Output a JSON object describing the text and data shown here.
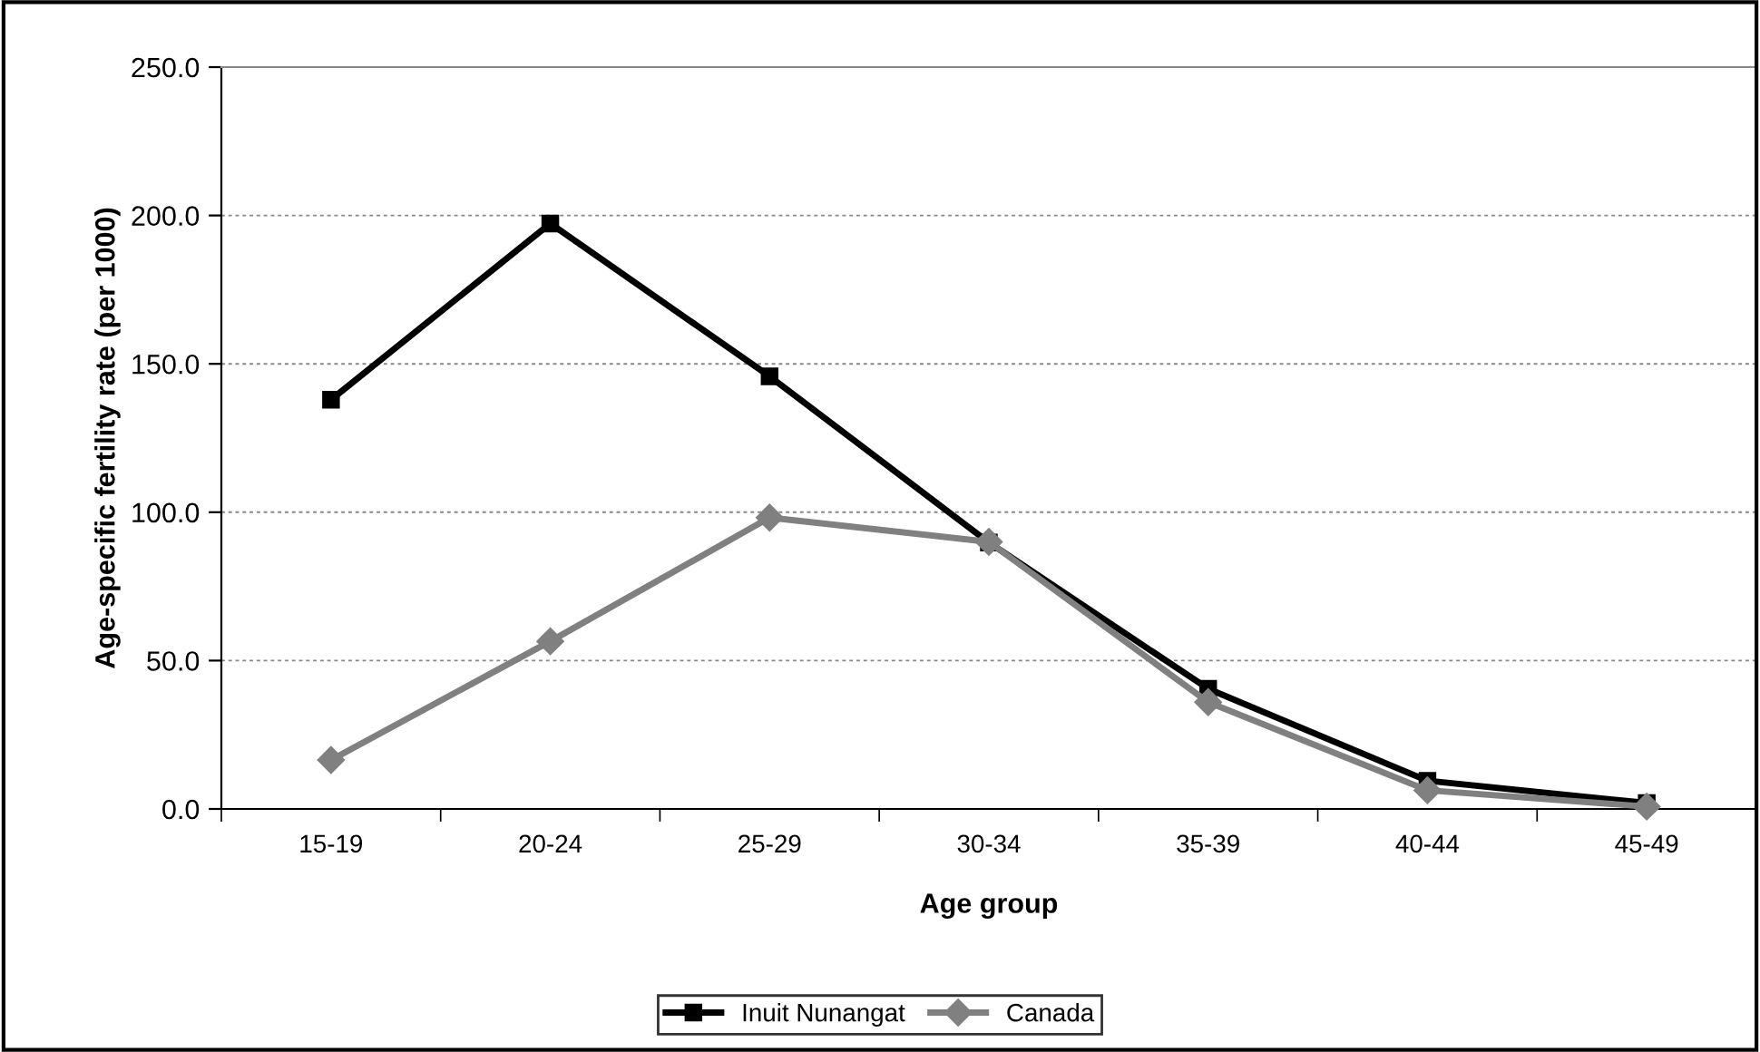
{
  "chart_data": {
    "type": "line",
    "xlabel": "Age group",
    "ylabel": "Age-specific fertility rate (per 1000)",
    "categories": [
      "15-19",
      "20-24",
      "25-29",
      "30-34",
      "35-39",
      "40-44",
      "45-49"
    ],
    "series": [
      {
        "name": "Inuit Nunangat",
        "color": "#000000",
        "marker": "square",
        "values": [
          137.9,
          197.3,
          145.8,
          89.8,
          40.5,
          9.5,
          2.0
        ]
      },
      {
        "name": "Canada",
        "color": "#808080",
        "marker": "diamond",
        "values": [
          16.5,
          56.5,
          98.2,
          90.0,
          36.0,
          6.3,
          0.8
        ]
      }
    ],
    "ylim": [
      0,
      250
    ],
    "yticks": [
      {
        "value": 0,
        "label": "0.0"
      },
      {
        "value": 50,
        "label": "50.0"
      },
      {
        "value": 100,
        "label": "100.0"
      },
      {
        "value": 150,
        "label": "150.0"
      },
      {
        "value": 200,
        "label": "200.0"
      },
      {
        "value": 250,
        "label": "250.0"
      }
    ],
    "grid": "y",
    "legend": "bottom",
    "line_style": "solid"
  }
}
